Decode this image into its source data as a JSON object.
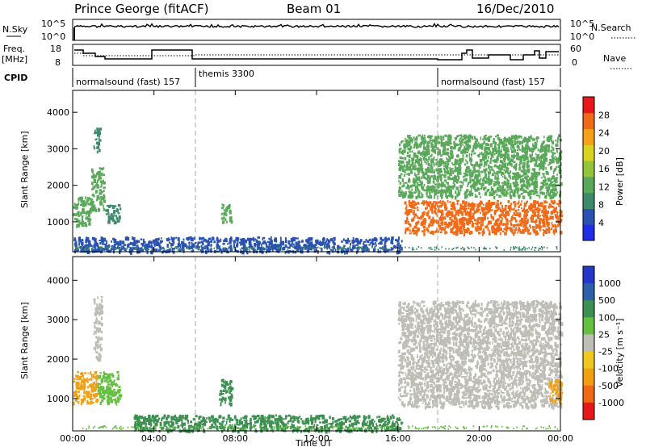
{
  "header": {
    "station": "Prince George (fitACF)",
    "beam": "Beam 01",
    "date": "16/Dec/2010"
  },
  "colors": {
    "power_scale": [
      "#1f2ee6",
      "#2a52b0",
      "#3d8a6a",
      "#5aa85a",
      "#93c43a",
      "#d9d21f",
      "#f5a21a",
      "#f06a18",
      "#e81818"
    ],
    "velocity_scale": [
      "#2338c8",
      "#2d60a8",
      "#3d8f52",
      "#66c040",
      "#c8c8c0",
      "#f0c820",
      "#f0a010",
      "#f06a14",
      "#e81818"
    ],
    "ground_scatter": "#bebeb6"
  },
  "panels": {
    "nsky": {
      "label": "N.Sky",
      "right_label": "N.Search",
      "left_ticks": [
        "10^5",
        "10^0"
      ],
      "right_ticks": [
        "10^5",
        "10^0"
      ]
    },
    "freq": {
      "label_line1": "Freq.",
      "label_line2": "[MHz]",
      "right_label": "Nave",
      "left_ticks": [
        "18",
        "8"
      ],
      "right_ticks": [
        "60",
        "0"
      ]
    },
    "cpid": {
      "label": "CPID",
      "segments": [
        {
          "name": "normalsound (fast) 157",
          "start_hour": 0
        },
        {
          "name": "themis 3300",
          "start_hour": 6
        },
        {
          "name": "normalsound (fast) 157",
          "start_hour": 18
        }
      ]
    }
  },
  "chart_data": [
    {
      "type": "heatmap",
      "name": "Power",
      "ylabel": "Slant Range [km]",
      "xlim": [
        0,
        24
      ],
      "ylim": [
        180,
        4600
      ],
      "yticks": [
        1000,
        2000,
        3000,
        4000
      ],
      "colorbar_label": "Power [dB]",
      "colorbar_ticks": [
        "28",
        "24",
        "20",
        "16",
        "12",
        "8",
        "4"
      ],
      "colorbar_range": [
        0,
        32
      ],
      "regions": [
        {
          "x0": 0.0,
          "x1": 0.9,
          "y0": 900,
          "y1": 1700,
          "value": 14
        },
        {
          "x0": 0.9,
          "x1": 1.5,
          "y0": 1300,
          "y1": 2500,
          "value": 12
        },
        {
          "x0": 1.0,
          "x1": 1.3,
          "y0": 2900,
          "y1": 3600,
          "value": 10
        },
        {
          "x0": 1.6,
          "x1": 2.3,
          "y0": 1000,
          "y1": 1500,
          "value": 8
        },
        {
          "x0": 7.3,
          "x1": 7.8,
          "y0": 1000,
          "y1": 1500,
          "value": 12
        },
        {
          "x0": 0.0,
          "x1": 16.2,
          "y0": 200,
          "y1": 600,
          "value": 6
        },
        {
          "x0": 16.0,
          "x1": 24.0,
          "y0": 1700,
          "y1": 3400,
          "value": 12
        },
        {
          "x0": 16.3,
          "x1": 24.0,
          "y0": 700,
          "y1": 1600,
          "value": 28
        }
      ]
    },
    {
      "type": "heatmap",
      "name": "Velocity",
      "ylabel": "Slant Range [km]",
      "xlabel": "Time UT",
      "xlim": [
        0,
        24
      ],
      "ylim": [
        180,
        4600
      ],
      "yticks": [
        1000,
        2000,
        3000,
        4000
      ],
      "xticks": [
        "00:00",
        "04:00",
        "08:00",
        "12:00",
        "16:00",
        "20:00",
        "00:00"
      ],
      "colorbar_label": "Velocity [m s⁻¹]",
      "colorbar_ticks": [
        "1000",
        "500",
        "100",
        "25",
        "-25",
        "-100",
        "-500",
        "-1000"
      ],
      "regions": [
        {
          "x0": 0.0,
          "x1": 1.2,
          "y0": 900,
          "y1": 1700,
          "value": -300
        },
        {
          "x0": 1.2,
          "x1": 2.3,
          "y0": 900,
          "y1": 1700,
          "value": 80
        },
        {
          "x0": 1.0,
          "x1": 1.4,
          "y0": 2000,
          "y1": 3600,
          "value": 0
        },
        {
          "x0": 7.2,
          "x1": 7.8,
          "y0": 900,
          "y1": 1500,
          "value": 120
        },
        {
          "x0": 3.0,
          "x1": 16.2,
          "y0": 200,
          "y1": 600,
          "value": 150
        },
        {
          "x0": 16.0,
          "x1": 24.0,
          "y0": 800,
          "y1": 3500,
          "value": 0
        },
        {
          "x0": 23.4,
          "x1": 24.0,
          "y0": 900,
          "y1": 1500,
          "value": -200
        }
      ]
    }
  ]
}
